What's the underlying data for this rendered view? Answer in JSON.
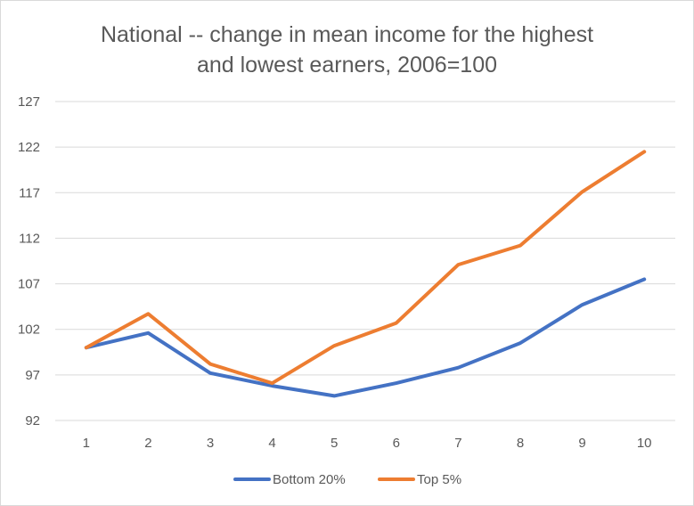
{
  "chart_data": {
    "type": "line",
    "title_line1": "National -- change in mean income for the highest",
    "title_line2": "and lowest earners, 2006=100",
    "categories": [
      "1",
      "2",
      "3",
      "4",
      "5",
      "6",
      "7",
      "8",
      "9",
      "10"
    ],
    "ylim": [
      92,
      127
    ],
    "yticks": [
      92,
      97,
      102,
      107,
      112,
      117,
      122,
      127
    ],
    "grid": true,
    "legend_position": "bottom",
    "series": [
      {
        "name": "Bottom 20%",
        "color": "#4472c4",
        "values": [
          100,
          101.6,
          97.2,
          95.8,
          94.7,
          96.1,
          97.8,
          100.5,
          104.7,
          107.5
        ]
      },
      {
        "name": "Top 5%",
        "color": "#ed7d31",
        "values": [
          100,
          103.7,
          98.2,
          96.1,
          100.2,
          102.7,
          109.1,
          111.2,
          117.1,
          121.5
        ]
      }
    ]
  }
}
